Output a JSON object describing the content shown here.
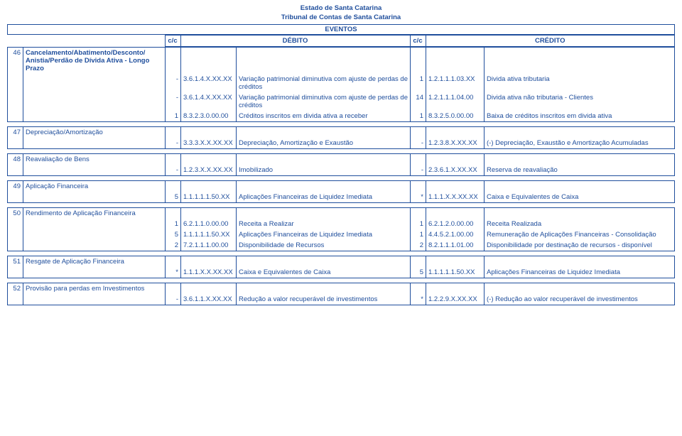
{
  "header": {
    "line1": "Estado de Santa Catarina",
    "line2": "Tribunal de Contas de Santa Catarina",
    "line3": "EVENTOS"
  },
  "colheads": {
    "cc": "c/c",
    "debito": "DÉBITO",
    "credito": "CRÉDITO"
  },
  "s46": {
    "num": "46",
    "title": "Cancelamento/Abatimento/Desconto/ Anistia/Perdão de Dívida Ativa - Longo Prazo",
    "rows": [
      {
        "c1": "-",
        "code1": "3.6.1.4.X.XX.XX",
        "desc1": "Variação patrimonial diminutiva com ajuste de perdas de créditos",
        "c2": "1",
        "code2": "1.2.1.1.1.03.XX",
        "desc2": "Divida ativa tributaria"
      },
      {
        "c1": "-",
        "code1": "3.6.1.4.X.XX.XX",
        "desc1": "Variação patrimonial diminutiva com ajuste de perdas de créditos",
        "c2": "14",
        "code2": "1.2.1.1.1.04.00",
        "desc2": "Divida ativa não tributaria - Clientes"
      },
      {
        "c1": "1",
        "code1": "8.3.2.3.0.00.00",
        "desc1": "Créditos inscritos em divida ativa a receber",
        "c2": "1",
        "code2": "8.3.2.5.0.00.00",
        "desc2": "Baixa de créditos inscritos em divida ativa"
      }
    ]
  },
  "s47": {
    "num": "47",
    "title": "Depreciação/Amortização",
    "rows": [
      {
        "c1": "-",
        "code1": "3.3.3.X.X.XX.XX",
        "desc1": "Depreciação, Amortização e Exaustão",
        "c2": "-",
        "code2": "1.2.3.8.X.XX.XX",
        "desc2": "(-) Depreciação, Exaustão e Amortização Acumuladas"
      }
    ]
  },
  "s48": {
    "num": "48",
    "title": "Reavaliação de Bens",
    "rows": [
      {
        "c1": "-",
        "code1": "1.2.3.X.X.XX.XX",
        "desc1": "Imobilizado",
        "c2": "-",
        "code2": "2.3.6.1.X.XX.XX",
        "desc2": "Reserva de reavaliação"
      }
    ]
  },
  "s49": {
    "num": "49",
    "title": "Aplicação Financeira",
    "rows": [
      {
        "c1": "5",
        "code1": "1.1.1.1.1.50.XX",
        "desc1": "Aplicações Financeiras de Liquidez Imediata",
        "c2": "*",
        "code2": "1.1.1.X.X.XX.XX",
        "desc2": "Caixa e Equivalentes de Caixa"
      }
    ]
  },
  "s50": {
    "num": "50",
    "title": "Rendimento de Aplicação Financeira",
    "rows": [
      {
        "c1": "1",
        "code1": "6.2.1.1.0.00.00",
        "desc1": "Receita a Realizar",
        "c2": "1",
        "code2": "6.2.1.2.0.00.00",
        "desc2": "Receita Realizada"
      },
      {
        "c1": "5",
        "code1": "1.1.1.1.1.50.XX",
        "desc1": "Aplicações Financeiras de Liquidez Imediata",
        "c2": "1",
        "code2": "4.4.5.2.1.00.00",
        "desc2": "Remuneração de Aplicações Financeiras - Consolidação"
      },
      {
        "c1": "2",
        "code1": "7.2.1.1.1.00.00",
        "desc1": "Disponibilidade de Recursos",
        "c2": "2",
        "code2": "8.2.1.1.1.01.00",
        "desc2": "Disponibilidade por destinação de recursos - disponível"
      }
    ]
  },
  "s51": {
    "num": "51",
    "title": "Resgate de Aplicação Financeira",
    "rows": [
      {
        "c1": "*",
        "code1": "1.1.1.X.X.XX.XX",
        "desc1": "Caixa e Equivalentes de Caixa",
        "c2": "5",
        "code2": "1.1.1.1.1.50.XX",
        "desc2": "Aplicações Financeiras de Liquidez Imediata"
      }
    ]
  },
  "s52": {
    "num": "52",
    "title": "Provisão para perdas em Investimentos",
    "rows": [
      {
        "c1": "-",
        "code1": "3.6.1.1.X.XX.XX",
        "desc1": "Redução a valor recuperável de investimentos",
        "c2": "*",
        "code2": "1.2.2.9.X.XX.XX",
        "desc2": "(-) Redução ao valor recuperável de investimentos"
      }
    ]
  }
}
